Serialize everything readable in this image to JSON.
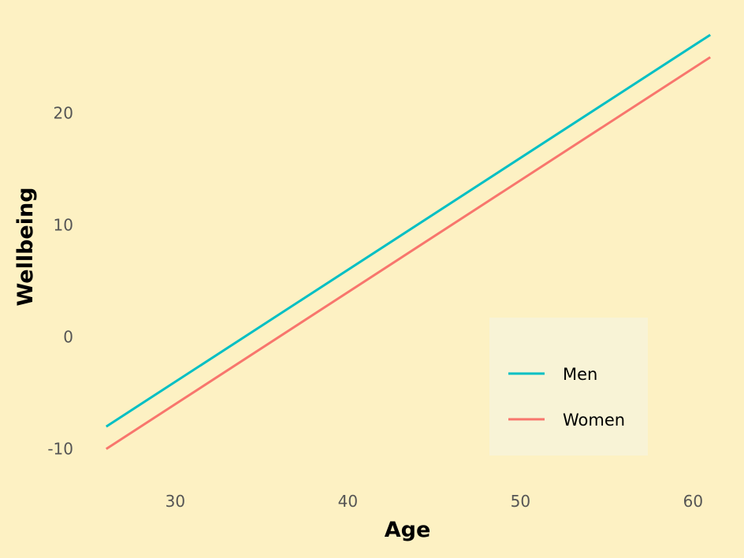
{
  "chart_data": {
    "type": "line",
    "title": "",
    "xlabel": "Age",
    "ylabel": "Wellbeing",
    "xlim": [
      25.6,
      61.4
    ],
    "ylim": [
      -12,
      28
    ],
    "x_ticks": [
      30,
      40,
      50,
      60
    ],
    "y_ticks": [
      -10,
      0,
      10,
      20
    ],
    "x_tick_labels": [
      "30",
      "40",
      "50",
      "60"
    ],
    "y_tick_labels": [
      "-10",
      "0",
      "10",
      "20"
    ],
    "grid": false,
    "legend_position": "bottom-right",
    "background_color": "#fdf1c3",
    "legend_background_color": "#f8f3d6",
    "series": [
      {
        "name": "Men",
        "color": "#00bfc4",
        "x": [
          26,
          61
        ],
        "y": [
          -8,
          27
        ]
      },
      {
        "name": "Women",
        "color": "#f8766d",
        "x": [
          26,
          61
        ],
        "y": [
          -10,
          25
        ]
      }
    ]
  }
}
